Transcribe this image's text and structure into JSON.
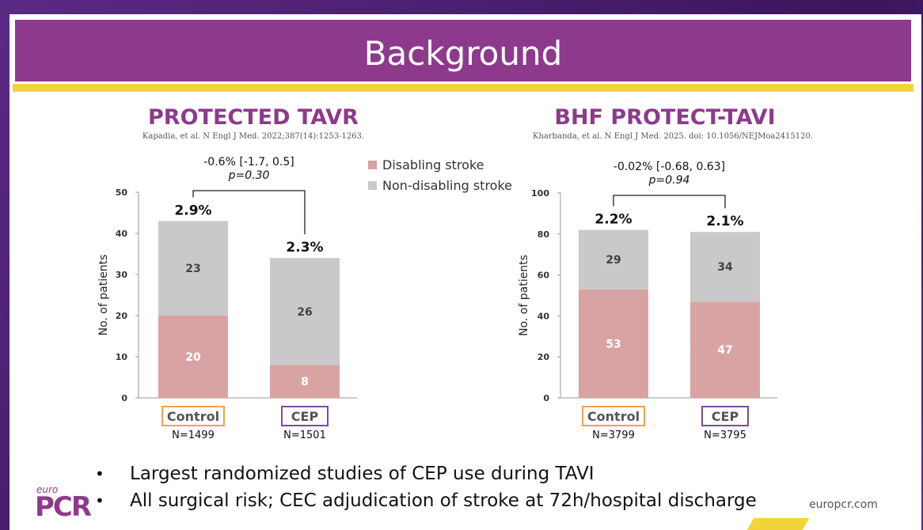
{
  "slide": {
    "title": "Background",
    "url": "europcr.com",
    "logo_small": "euro",
    "logo_big": "PCR"
  },
  "bullets": [
    "Largest randomized studies of CEP use during TAVI",
    "All surgical risk; CEC adjudication of stroke at 72h/hospital discharge"
  ],
  "legend": [
    {
      "label": "Disabling stroke",
      "color": "#d9a3a3"
    },
    {
      "label": "Non-disabling stroke",
      "color": "#c9c9c9"
    }
  ],
  "chart_data": [
    {
      "type": "bar",
      "title": "PROTECTED TAVR",
      "subtitle": "Kapadia, et al. N Engl J Med. 2022;387(14):1253-1263.",
      "ylabel": "No. of patients",
      "ylim": [
        0,
        50
      ],
      "yticks": [
        0,
        10,
        20,
        30,
        40,
        50
      ],
      "categories": [
        "Control",
        "CEP"
      ],
      "category_box_colors": [
        "#f0a050",
        "#7a4aa0"
      ],
      "n_labels": [
        "N=1499",
        "N=1501"
      ],
      "percent_labels": [
        "2.9%",
        "2.3%"
      ],
      "series": [
        {
          "name": "Disabling stroke",
          "values": [
            20,
            8
          ]
        },
        {
          "name": "Non-disabling stroke",
          "values": [
            23,
            26
          ]
        }
      ],
      "annotation_line1": "-0.6% [-1.7, 0.5]",
      "annotation_line2": "p=0.30"
    },
    {
      "type": "bar",
      "title": "BHF PROTECT-TAVI",
      "subtitle": "Kharbanda, et al. N Engl J Med. 2025. doi: 10.1056/NEJMoa2415120.",
      "ylabel": "No. of patients",
      "ylim": [
        0,
        100
      ],
      "yticks": [
        0,
        20,
        40,
        60,
        80,
        100
      ],
      "categories": [
        "Control",
        "CEP"
      ],
      "category_box_colors": [
        "#f0a050",
        "#7a4aa0"
      ],
      "n_labels": [
        "N=3799",
        "N=3795"
      ],
      "percent_labels": [
        "2.2%",
        "2.1%"
      ],
      "series": [
        {
          "name": "Disabling stroke",
          "values": [
            53,
            47
          ]
        },
        {
          "name": "Non-disabling stroke",
          "values": [
            29,
            34
          ]
        }
      ],
      "annotation_line1": "-0.02% [-0.68, 0.63]",
      "annotation_line2": "p=0.94"
    }
  ]
}
